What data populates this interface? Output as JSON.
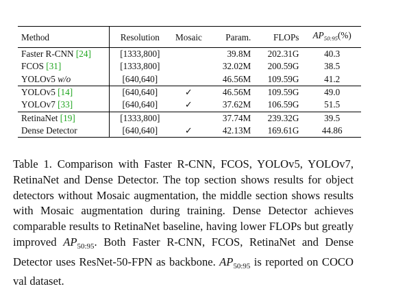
{
  "table": {
    "headers": {
      "method": "Method",
      "resolution": "Resolution",
      "mosaic": "Mosaic",
      "param": "Param.",
      "flops": "FLOPs",
      "ap_main": "AP",
      "ap_sub": "50:95",
      "ap_unit": "(%)"
    },
    "rows": [
      {
        "method": "Faster R-CNN ",
        "cite": "[24]",
        "suffix": "",
        "resolution": "[1333,800]",
        "mosaic": "",
        "param": "39.8M",
        "flops": "202.31G",
        "ap": "40.3"
      },
      {
        "method": "FCOS ",
        "cite": "[31]",
        "suffix": "",
        "resolution": "[1333,800]",
        "mosaic": "",
        "param": "32.02M",
        "flops": "200.59G",
        "ap": "38.5"
      },
      {
        "method": "YOLOv5 ",
        "cite": "",
        "suffix": "w/o",
        "resolution": "[640,640]",
        "mosaic": "",
        "param": "46.56M",
        "flops": "109.59G",
        "ap": "41.2"
      },
      {
        "method": "YOLOv5 ",
        "cite": "[14]",
        "suffix": "",
        "resolution": "[640,640]",
        "mosaic": "✓",
        "param": "46.56M",
        "flops": "109.59G",
        "ap": "49.0"
      },
      {
        "method": "YOLOv7 ",
        "cite": "[33]",
        "suffix": "",
        "resolution": "[640,640]",
        "mosaic": "✓",
        "param": "37.62M",
        "flops": "106.59G",
        "ap": "51.5"
      },
      {
        "method": "RetinaNet ",
        "cite": "[19]",
        "suffix": "",
        "resolution": "[1333,800]",
        "mosaic": "",
        "param": "37.74M",
        "flops": "239.32G",
        "ap": "39.5"
      },
      {
        "method": "Dense Detector",
        "cite": "",
        "suffix": "",
        "resolution": "[640,640]",
        "mosaic": "✓",
        "param": "42.13M",
        "flops": "169.61G",
        "ap": "44.86"
      }
    ]
  },
  "caption": {
    "part1": "Table 1.  Comparison with Faster R-CNN, FCOS, YOLOv5, YOLOv7, RetinaNet and Dense Detector. The top section shows results for object detectors without Mosaic augmentation, the middle section shows results with Mosaic augmentation during training.  Dense Detector achieves comparable results to RetinaNet baseline, having lower FLOPs but greatly improved ",
    "ap1_main": "AP",
    "ap1_sub": "50:95",
    "part2": ". Both Faster R-CNN, FCOS, RetinaNet and Dense Detector uses ResNet-50-FPN as backbone. ",
    "ap2_main": "AP",
    "ap2_sub": "50:95",
    "part3": " is reported on COCO val dataset."
  }
}
